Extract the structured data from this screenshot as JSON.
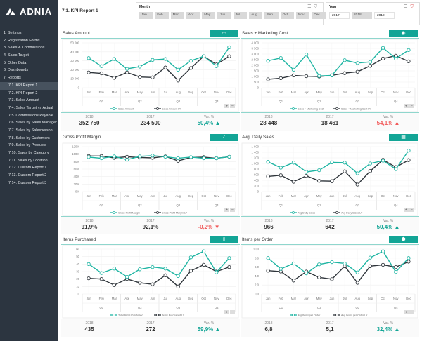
{
  "app": {
    "logo_text": "ADNIA",
    "page_title": "7.1. KPI Report 1"
  },
  "sidebar": {
    "items": [
      {
        "label": "1. Settings",
        "sub": false
      },
      {
        "label": "2. Registration Forms",
        "sub": false
      },
      {
        "label": "3. Sales & Commissions",
        "sub": false
      },
      {
        "label": "4. Sales Target",
        "sub": false
      },
      {
        "label": "5. Other Data",
        "sub": false
      },
      {
        "label": "6. Dashboards",
        "sub": false
      },
      {
        "label": "7. Reports",
        "sub": false
      },
      {
        "label": "7.1. KPI Report 1",
        "sub": true,
        "active": true
      },
      {
        "label": "7.2. KPI Report 2",
        "sub": true
      },
      {
        "label": "7.3. Sales Amount",
        "sub": true
      },
      {
        "label": "7.4. Sales Target vs Actual",
        "sub": true
      },
      {
        "label": "7.5. Commissions Payable",
        "sub": true
      },
      {
        "label": "7.6. Sales by Sales Manager",
        "sub": true
      },
      {
        "label": "7.7. Sales by Salesperson",
        "sub": true
      },
      {
        "label": "7.8. Sales by Customers",
        "sub": true
      },
      {
        "label": "7.9. Sales by Products",
        "sub": true
      },
      {
        "label": "7.10. Sales by Category",
        "sub": true
      },
      {
        "label": "7.11. Sales by Location",
        "sub": true
      },
      {
        "label": "7.12. Custom Report 1",
        "sub": true
      },
      {
        "label": "7.13. Custom Report 2",
        "sub": true
      },
      {
        "label": "7.14. Custom Report 3",
        "sub": true
      }
    ]
  },
  "slicers": {
    "month": {
      "title": "Month",
      "options": [
        "Jan",
        "Feb",
        "Mar",
        "Apr",
        "May",
        "Jun",
        "Jul",
        "Aug",
        "Sep",
        "Oct",
        "Nov",
        "Dec"
      ]
    },
    "year": {
      "title": "Year",
      "options": [
        {
          "label": "2017",
          "selected": false
        },
        {
          "label": "2018",
          "selected": true
        },
        {
          "label": "2019",
          "selected": false
        }
      ]
    }
  },
  "colors": {
    "current": "#1fb5a3",
    "last_year": "#2f353b",
    "up": "#13a596",
    "down": "#f15b5b"
  },
  "labels": {
    "col1": "2018",
    "col2": "2017",
    "col3": "Var. %"
  },
  "chart_data": [
    {
      "type": "line",
      "title": "Sales Amount",
      "icon": "money-icon",
      "categories": [
        "Jan",
        "Feb",
        "Mar",
        "Apr",
        "May",
        "Jun",
        "Jul",
        "Aug",
        "Sep",
        "Oct",
        "Nov",
        "Dec"
      ],
      "quarters": [
        "Q1",
        "Q2",
        "Q3",
        "Q4"
      ],
      "ylim": [
        0,
        50000
      ],
      "yticks": [
        "0",
        "10 000",
        "20 000",
        "30 000",
        "40 000",
        "50 000"
      ],
      "series": [
        {
          "name": "Sales Amount",
          "values": [
            33000,
            24000,
            32000,
            21000,
            23500,
            31000,
            32000,
            20000,
            30000,
            35000,
            24000,
            45000
          ]
        },
        {
          "name": "Sales Amount LY",
          "values": [
            17000,
            16000,
            11000,
            17000,
            12000,
            11500,
            22500,
            8000,
            22000,
            35000,
            26000,
            35000
          ]
        }
      ],
      "stats": {
        "current": "352 750",
        "previous": "234 500",
        "variance": "50,4%",
        "direction": "up"
      }
    },
    {
      "type": "line",
      "title": "Sales + Marketing Cost",
      "icon": "coins-icon",
      "categories": [
        "Jan",
        "Feb",
        "Mar",
        "Apr",
        "May",
        "Jun",
        "Jul",
        "Aug",
        "Sep",
        "Oct",
        "Nov",
        "Dec"
      ],
      "quarters": [
        "Q1",
        "Q2",
        "Q3",
        "Q4"
      ],
      "ylim": [
        0,
        4000
      ],
      "yticks": [
        "0",
        "500",
        "1 000",
        "1 500",
        "2 000",
        "2 500",
        "3 000",
        "3 500",
        "4 000"
      ],
      "series": [
        {
          "name": "Sales + Marketing Cost",
          "values": [
            2400,
            2650,
            1600,
            2950,
            1050,
            1100,
            2450,
            2200,
            2300,
            3550,
            2600,
            3350
          ]
        },
        {
          "name": "Sales + Marketing Cost LY",
          "values": [
            750,
            850,
            1100,
            1030,
            1000,
            1100,
            1300,
            1420,
            1950,
            2600,
            2850,
            2350
          ]
        }
      ],
      "stats": {
        "current": "28 448",
        "previous": "18 461",
        "variance": "54,1%",
        "direction": "up-bad"
      }
    },
    {
      "type": "line",
      "title": "Gross Profit Margin",
      "icon": "chart-icon",
      "categories": [
        "Jan",
        "Feb",
        "Mar",
        "Apr",
        "May",
        "Jun",
        "Jul",
        "Aug",
        "Sep",
        "Oct",
        "Nov",
        "Dec"
      ],
      "quarters": [
        "Q1",
        "Q2",
        "Q3",
        "Q4"
      ],
      "ylim": [
        0,
        120
      ],
      "yticks": [
        "0%",
        "20%",
        "40%",
        "60%",
        "80%",
        "100%",
        "120%"
      ],
      "series": [
        {
          "name": "Gross Profit Margin",
          "values": [
            92,
            89,
            94,
            85,
            94,
            96,
            93,
            89,
            92,
            89,
            89,
            93
          ]
        },
        {
          "name": "Gross Profit Margin LY",
          "values": [
            95,
            95,
            90,
            93,
            91,
            90,
            94,
            82,
            91,
            92,
            89,
            93
          ]
        }
      ],
      "stats": {
        "current": "91,9%",
        "previous": "92,1%",
        "variance": "-0,2%",
        "direction": "down"
      }
    },
    {
      "type": "line",
      "title": "Avg. Daily Sales",
      "icon": "calendar-icon",
      "categories": [
        "Jan",
        "Feb",
        "Mar",
        "Apr",
        "May",
        "Jun",
        "Jul",
        "Aug",
        "Sep",
        "Oct",
        "Nov",
        "Dec"
      ],
      "quarters": [
        "Q1",
        "Q2",
        "Q3",
        "Q4"
      ],
      "ylim": [
        0,
        1600
      ],
      "yticks": [
        "0",
        "200",
        "400",
        "600",
        "800",
        "1 000",
        "1 200",
        "1 400",
        "1 600"
      ],
      "series": [
        {
          "name": "Avg Daily Sales",
          "values": [
            1060,
            850,
            1030,
            700,
            760,
            1040,
            1030,
            650,
            1000,
            1100,
            800,
            1460
          ]
        },
        {
          "name": "Avg Daily Sales LY",
          "values": [
            540,
            580,
            350,
            560,
            380,
            370,
            720,
            250,
            730,
            1130,
            870,
            1120
          ]
        }
      ],
      "stats": {
        "current": "966",
        "previous": "642",
        "variance": "50,4%",
        "direction": "up"
      }
    },
    {
      "type": "line",
      "title": "Items Purchased",
      "icon": "tablet-icon",
      "categories": [
        "Jan",
        "Feb",
        "Mar",
        "Apr",
        "May",
        "Jun",
        "Jul",
        "Aug",
        "Sep",
        "Oct",
        "Nov",
        "Dec"
      ],
      "quarters": [
        "Q1",
        "Q2",
        "Q3",
        "Q4"
      ],
      "ylim": [
        0,
        60
      ],
      "yticks": [
        "0",
        "10",
        "20",
        "30",
        "40",
        "50",
        "60"
      ],
      "series": [
        {
          "name": "Total Items Purchased",
          "values": [
            40,
            28,
            34,
            23,
            33,
            36,
            34,
            24,
            49,
            57,
            29,
            48
          ]
        },
        {
          "name": "Items Purchased LY",
          "values": [
            21,
            20,
            12,
            20,
            15,
            13,
            25,
            10,
            31,
            39,
            30,
            36
          ]
        }
      ],
      "stats": {
        "current": "435",
        "previous": "272",
        "variance": "59,9%",
        "direction": "up"
      }
    },
    {
      "type": "line",
      "title": "Items per Order",
      "icon": "box-icon",
      "categories": [
        "Jan",
        "Feb",
        "Mar",
        "Apr",
        "May",
        "Jun",
        "Jul",
        "Aug",
        "Sep",
        "Oct",
        "Nov",
        "Dec"
      ],
      "quarters": [
        "Q1",
        "Q2",
        "Q3",
        "Q4"
      ],
      "ylim": [
        0,
        10
      ],
      "yticks": [
        "0,0",
        "2,0",
        "4,0",
        "6,0",
        "8,0",
        "10,0"
      ],
      "series": [
        {
          "name": "Avg Items per Order",
          "values": [
            8.0,
            5.6,
            6.8,
            4.6,
            6.6,
            7.1,
            6.8,
            4.8,
            8.1,
            9.5,
            4.9,
            8.0
          ]
        },
        {
          "name": "Avg Items per Order LY",
          "values": [
            5.2,
            5.0,
            3.0,
            5.0,
            3.7,
            3.3,
            6.2,
            2.5,
            6.2,
            6.5,
            6.0,
            7.2
          ]
        }
      ],
      "stats": {
        "current": "6,8",
        "previous": "5,1",
        "variance": "32,4%",
        "direction": "up"
      }
    }
  ]
}
